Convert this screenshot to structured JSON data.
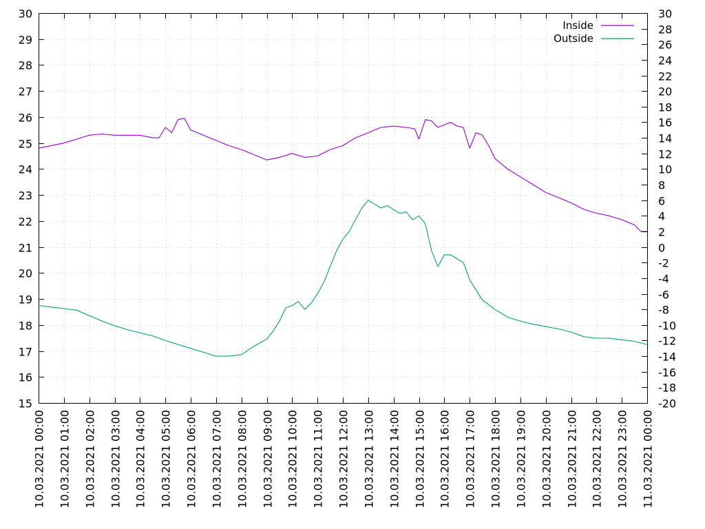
{
  "chart_data": {
    "type": "line",
    "title": "",
    "xlabel": "",
    "ylabel": "",
    "y2label": "",
    "grid": true,
    "legend_position": "top-right",
    "xlim": [
      "10.03.2021 00:00",
      "11.03.2021 00:00"
    ],
    "ylim": [
      15,
      30
    ],
    "y2lim": [
      -20,
      30
    ],
    "x_ticks": [
      "10.03.2021 00:00",
      "10.03.2021 01:00",
      "10.03.2021 02:00",
      "10.03.2021 03:00",
      "10.03.2021 04:00",
      "10.03.2021 05:00",
      "10.03.2021 06:00",
      "10.03.2021 07:00",
      "10.03.2021 08:00",
      "10.03.2021 09:00",
      "10.03.2021 10:00",
      "10.03.2021 11:00",
      "10.03.2021 12:00",
      "10.03.2021 13:00",
      "10.03.2021 14:00",
      "10.03.2021 15:00",
      "10.03.2021 16:00",
      "10.03.2021 17:00",
      "10.03.2021 18:00",
      "10.03.2021 19:00",
      "10.03.2021 20:00",
      "10.03.2021 21:00",
      "10.03.2021 22:00",
      "10.03.2021 23:00",
      "11.03.2021 00:00"
    ],
    "y_ticks": [
      15,
      16,
      17,
      18,
      19,
      20,
      21,
      22,
      23,
      24,
      25,
      26,
      27,
      28,
      29,
      30
    ],
    "y2_ticks": [
      -20,
      -18,
      -16,
      -14,
      -12,
      -10,
      -8,
      -6,
      -4,
      -2,
      0,
      2,
      4,
      6,
      8,
      10,
      12,
      14,
      16,
      18,
      20,
      22,
      24,
      26,
      28,
      30
    ],
    "series": [
      {
        "name": "Inside",
        "axis": "y",
        "color": "#9400d3",
        "x": [
          "10.03.2021 00:00",
          "10.03.2021 00:30",
          "10.03.2021 01:00",
          "10.03.2021 01:30",
          "10.03.2021 02:00",
          "10.03.2021 02:30",
          "10.03.2021 03:00",
          "10.03.2021 03:30",
          "10.03.2021 04:00",
          "10.03.2021 04:30",
          "10.03.2021 04:45",
          "10.03.2021 05:00",
          "10.03.2021 05:15",
          "10.03.2021 05:30",
          "10.03.2021 05:45",
          "10.03.2021 06:00",
          "10.03.2021 06:30",
          "10.03.2021 07:00",
          "10.03.2021 07:30",
          "10.03.2021 08:00",
          "10.03.2021 08:30",
          "10.03.2021 09:00",
          "10.03.2021 09:30",
          "10.03.2021 10:00",
          "10.03.2021 10:30",
          "10.03.2021 11:00",
          "10.03.2021 11:30",
          "10.03.2021 12:00",
          "10.03.2021 12:30",
          "10.03.2021 13:00",
          "10.03.2021 13:30",
          "10.03.2021 14:00",
          "10.03.2021 14:30",
          "10.03.2021 14:50",
          "10.03.2021 15:00",
          "10.03.2021 15:15",
          "10.03.2021 15:30",
          "10.03.2021 15:45",
          "10.03.2021 16:00",
          "10.03.2021 16:15",
          "10.03.2021 16:30",
          "10.03.2021 16:45",
          "10.03.2021 17:00",
          "10.03.2021 17:15",
          "10.03.2021 17:30",
          "10.03.2021 17:45",
          "10.03.2021 18:00",
          "10.03.2021 18:30",
          "10.03.2021 19:00",
          "10.03.2021 19:30",
          "10.03.2021 20:00",
          "10.03.2021 20:30",
          "10.03.2021 21:00",
          "10.03.2021 21:30",
          "10.03.2021 22:00",
          "10.03.2021 22:30",
          "10.03.2021 23:00",
          "10.03.2021 23:30",
          "10.03.2021 23:45",
          "11.03.2021 00:00"
        ],
        "y": [
          24.8,
          24.9,
          25.0,
          25.15,
          25.3,
          25.35,
          25.3,
          25.3,
          25.3,
          25.2,
          25.2,
          25.6,
          25.4,
          25.9,
          25.95,
          25.5,
          25.3,
          25.1,
          24.9,
          24.75,
          24.55,
          24.35,
          24.45,
          24.6,
          24.45,
          24.5,
          24.75,
          24.9,
          25.2,
          25.4,
          25.6,
          25.65,
          25.6,
          25.55,
          25.15,
          25.9,
          25.85,
          25.6,
          25.7,
          25.8,
          25.65,
          25.6,
          24.8,
          25.4,
          25.3,
          24.9,
          24.4,
          24.0,
          23.7,
          23.4,
          23.1,
          22.9,
          22.7,
          22.45,
          22.3,
          22.2,
          22.05,
          21.85,
          21.6,
          21.6
        ]
      },
      {
        "name": "Outside",
        "axis": "y2",
        "color": "#009e73",
        "x": [
          "10.03.2021 00:00",
          "10.03.2021 00:30",
          "10.03.2021 01:00",
          "10.03.2021 01:30",
          "10.03.2021 02:00",
          "10.03.2021 02:30",
          "10.03.2021 03:00",
          "10.03.2021 03:30",
          "10.03.2021 04:00",
          "10.03.2021 04:30",
          "10.03.2021 05:00",
          "10.03.2021 05:30",
          "10.03.2021 06:00",
          "10.03.2021 06:30",
          "10.03.2021 07:00",
          "10.03.2021 07:30",
          "10.03.2021 08:00",
          "10.03.2021 08:30",
          "10.03.2021 09:00",
          "10.03.2021 09:15",
          "10.03.2021 09:30",
          "10.03.2021 09:45",
          "10.03.2021 10:00",
          "10.03.2021 10:15",
          "10.03.2021 10:30",
          "10.03.2021 10:45",
          "10.03.2021 11:00",
          "10.03.2021 11:15",
          "10.03.2021 11:30",
          "10.03.2021 11:45",
          "10.03.2021 12:00",
          "10.03.2021 12:15",
          "10.03.2021 12:30",
          "10.03.2021 12:45",
          "10.03.2021 13:00",
          "10.03.2021 13:15",
          "10.03.2021 13:30",
          "10.03.2021 13:45",
          "10.03.2021 14:00",
          "10.03.2021 14:15",
          "10.03.2021 14:30",
          "10.03.2021 14:45",
          "10.03.2021 15:00",
          "10.03.2021 15:15",
          "10.03.2021 15:30",
          "10.03.2021 15:45",
          "10.03.2021 16:00",
          "10.03.2021 16:15",
          "10.03.2021 16:30",
          "10.03.2021 16:45",
          "10.03.2021 17:00",
          "10.03.2021 17:15",
          "10.03.2021 17:30",
          "10.03.2021 18:00",
          "10.03.2021 18:30",
          "10.03.2021 19:00",
          "10.03.2021 19:30",
          "10.03.2021 20:00",
          "10.03.2021 20:30",
          "10.03.2021 21:00",
          "10.03.2021 21:30",
          "10.03.2021 22:00",
          "10.03.2021 22:30",
          "10.03.2021 23:00",
          "10.03.2021 23:30",
          "11.03.2021 00:00"
        ],
        "y": [
          -7.5,
          -7.7,
          -7.9,
          -8.1,
          -8.8,
          -9.5,
          -10.1,
          -10.6,
          -11.0,
          -11.4,
          -12.0,
          -12.5,
          -13.0,
          -13.5,
          -14.0,
          -14.0,
          -13.8,
          -12.7,
          -11.8,
          -10.8,
          -9.5,
          -7.8,
          -7.5,
          -7.0,
          -8.0,
          -7.2,
          -6.0,
          -4.5,
          -2.5,
          -0.5,
          1.0,
          2.0,
          3.5,
          5.0,
          6.0,
          5.5,
          5.0,
          5.3,
          4.8,
          4.3,
          4.5,
          3.5,
          4.0,
          3.0,
          -0.5,
          -2.5,
          -1.0,
          -1.0,
          -1.5,
          -2.0,
          -4.2,
          -5.5,
          -6.8,
          -8.0,
          -9.0,
          -9.5,
          -9.9,
          -10.2,
          -10.5,
          -10.9,
          -11.5,
          -11.7,
          -11.7,
          -11.9,
          -12.1,
          -12.5
        ]
      }
    ]
  }
}
